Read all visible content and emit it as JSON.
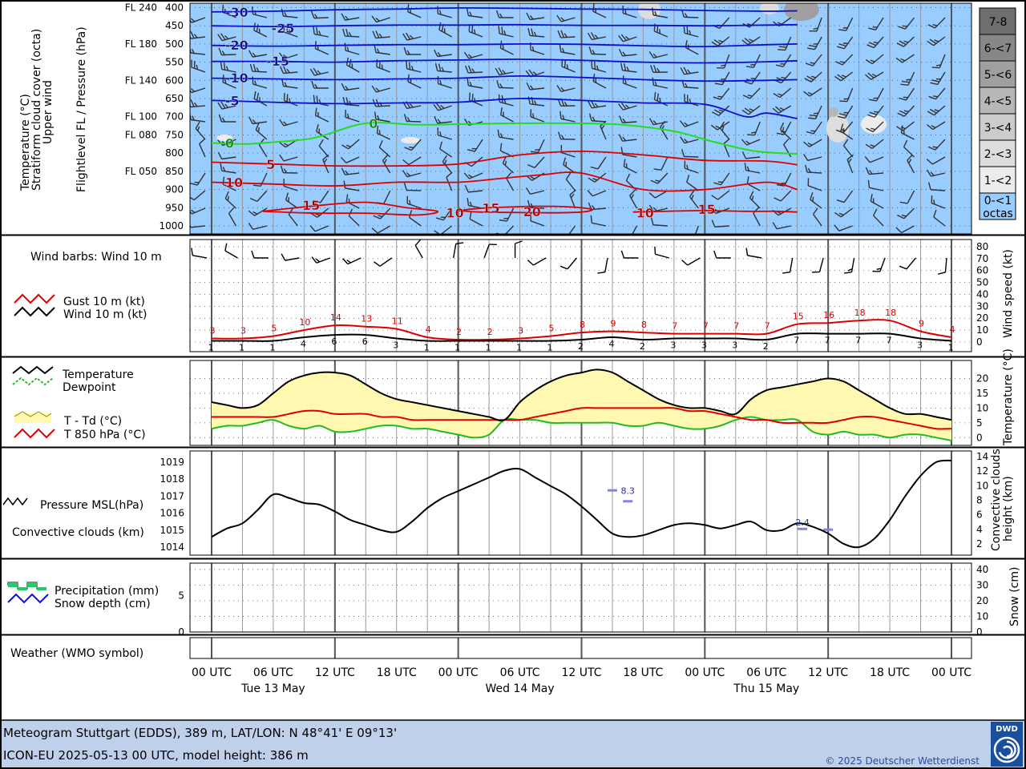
{
  "footer": {
    "line1": "Meteogram Stuttgart (EDDS), 389 m, LAT/LON: N 48°41' E 09°13'",
    "line2": "ICON-EU 2025-05-13 00 UTC, model height: 386 m",
    "copyright": "© 2025 Deutscher Wetterdienst",
    "logo_text": "DWD"
  },
  "time_axis": {
    "ticks": [
      "00 UTC",
      "06 UTC",
      "12 UTC",
      "18 UTC",
      "00 UTC",
      "06 UTC",
      "12 UTC",
      "18 UTC",
      "00 UTC",
      "06 UTC",
      "12 UTC",
      "18 UTC",
      "00 UTC"
    ],
    "days": [
      "Tue 13 May",
      "Wed 14 May",
      "Thu 15 May"
    ]
  },
  "colors": {
    "sky": "#99ccff",
    "neg_isotherm": "#1010cc",
    "zero_isotherm": "#22dd22",
    "pos_isotherm": "#dd0000",
    "td_fill": "#fff8b0",
    "footer_bg": "#bfd0ea"
  },
  "chart_data": [
    {
      "id": "upper",
      "type": "area",
      "title": "Temperature (°C) / Stratiform cloud cover (octa) / Upper wind",
      "ylabel_left_1": "Temperature (°C)",
      "ylabel_left_2": "Stratiform cloud cover (octa)",
      "ylabel_left_3": "Upper wind",
      "ylabel_left_4": "Flightlevel FL / Pressure (hPa)",
      "pressure_levels": [
        {
          "fl": "FL 240",
          "p": "400",
          "v": 400
        },
        {
          "fl": "",
          "p": "450",
          "v": 450
        },
        {
          "fl": "FL 180",
          "p": "500",
          "v": 500
        },
        {
          "fl": "",
          "p": "550",
          "v": 550
        },
        {
          "fl": "FL 140",
          "p": "600",
          "v": 600
        },
        {
          "fl": "",
          "p": "650",
          "v": 650
        },
        {
          "fl": "FL 100",
          "p": "700",
          "v": 700
        },
        {
          "fl": "FL 080",
          "p": "750",
          "v": 750
        },
        {
          "fl": "",
          "p": "800",
          "v": 800
        },
        {
          "fl": "FL 050",
          "p": "850",
          "v": 850
        },
        {
          "fl": "",
          "p": "900",
          "v": 900
        },
        {
          "fl": "",
          "p": "950",
          "v": 950
        },
        {
          "fl": "",
          "p": "1000",
          "v": 1000
        }
      ],
      "ylim": [
        388,
        1022
      ],
      "isotherm_labels": [
        {
          "text": "-30",
          "h": 2,
          "p": 412,
          "kind": "neg"
        },
        {
          "text": "-25",
          "h": 11,
          "p": 456,
          "kind": "neg"
        },
        {
          "text": "-20",
          "h": 2,
          "p": 503,
          "kind": "neg"
        },
        {
          "text": "-15",
          "h": 10,
          "p": 547,
          "kind": "neg"
        },
        {
          "text": "-10",
          "h": 2,
          "p": 593,
          "kind": "neg"
        },
        {
          "text": "-5",
          "h": 2,
          "p": 655,
          "kind": "neg"
        },
        {
          "text": "0",
          "h": 2,
          "p": 772,
          "kind": "zero"
        },
        {
          "text": "0",
          "h": 30,
          "p": 718,
          "kind": "zero"
        },
        {
          "text": "5",
          "h": 10,
          "p": 830,
          "kind": "pos"
        },
        {
          "text": "10",
          "h": 2,
          "p": 880,
          "kind": "pos"
        },
        {
          "text": "15",
          "h": 17,
          "p": 943,
          "kind": "pos"
        },
        {
          "text": "10",
          "h": 45,
          "p": 964,
          "kind": "pos"
        },
        {
          "text": "15",
          "h": 52,
          "p": 950,
          "kind": "pos"
        },
        {
          "text": "20",
          "h": 60,
          "p": 960,
          "kind": "pos"
        },
        {
          "text": "10",
          "h": 82,
          "p": 964,
          "kind": "pos"
        },
        {
          "text": "15",
          "h": 94,
          "p": 954,
          "kind": "pos"
        }
      ],
      "isotherms": [
        {
          "kind": "neg",
          "t": -30,
          "h": [
            0,
            12,
            24,
            36,
            48,
            60,
            72,
            84,
            96,
            108,
            114
          ],
          "p": [
            412,
            410,
            406,
            404,
            401,
            402,
            404,
            405,
            408,
            410,
            409
          ]
        },
        {
          "kind": "neg",
          "t": -25,
          "h": [
            0,
            12,
            24,
            36,
            48,
            60,
            72,
            84,
            96,
            108,
            114
          ],
          "p": [
            450,
            452,
            450,
            448,
            448,
            447,
            449,
            449,
            450,
            448,
            447
          ]
        },
        {
          "kind": "neg",
          "t": -20,
          "h": [
            0,
            12,
            24,
            36,
            48,
            60,
            72,
            84,
            96,
            108,
            114
          ],
          "p": [
            504,
            506,
            504,
            502,
            502,
            500,
            501,
            505,
            507,
            502,
            500
          ]
        },
        {
          "kind": "neg",
          "t": -15,
          "h": [
            0,
            12,
            24,
            36,
            48,
            60,
            72,
            84,
            96,
            108,
            114
          ],
          "p": [
            548,
            548,
            550,
            546,
            544,
            542,
            545,
            550,
            552,
            549,
            546
          ]
        },
        {
          "kind": "neg",
          "t": -10,
          "h": [
            0,
            12,
            24,
            36,
            48,
            60,
            72,
            84,
            96,
            108,
            114
          ],
          "p": [
            594,
            596,
            598,
            596,
            594,
            588,
            592,
            598,
            602,
            600,
            598
          ]
        },
        {
          "kind": "neg",
          "t": -5,
          "h": [
            0,
            12,
            24,
            36,
            48,
            60,
            72,
            84,
            96,
            104,
            108,
            114
          ],
          "p": [
            655,
            660,
            664,
            662,
            660,
            650,
            655,
            662,
            666,
            700,
            690,
            705
          ]
        },
        {
          "kind": "zero",
          "t": 0,
          "h": [
            0,
            6,
            12,
            20,
            30,
            40,
            50,
            60,
            70,
            80,
            90,
            98,
            106,
            114
          ],
          "p": [
            772,
            775,
            770,
            758,
            718,
            722,
            720,
            718,
            718,
            722,
            740,
            770,
            795,
            802
          ]
        },
        {
          "kind": "pos",
          "t": 5,
          "h": [
            0,
            12,
            24,
            36,
            48,
            60,
            72,
            84,
            96,
            108,
            114
          ],
          "p": [
            825,
            830,
            835,
            835,
            830,
            805,
            795,
            805,
            820,
            822,
            832
          ]
        },
        {
          "kind": "pos",
          "t": 10,
          "h": [
            0,
            12,
            24,
            36,
            48,
            56,
            64,
            72,
            84,
            96,
            108,
            114
          ],
          "p": [
            880,
            885,
            890,
            880,
            880,
            870,
            860,
            855,
            900,
            900,
            880,
            900
          ]
        },
        {
          "kind": "pos",
          "t": 15,
          "h": [
            10,
            20,
            30,
            38,
            44,
            40,
            30,
            20,
            10
          ],
          "p": [
            960,
            945,
            935,
            950,
            960,
            970,
            965,
            965,
            960
          ]
        }
      ],
      "cloud_cover_octas": [
        {
          "label": "7-8",
          "color": "#6e6e6e"
        },
        {
          "label": "6-<7",
          "color": "#878787"
        },
        {
          "label": "5-<6",
          "color": "#a0a0a0"
        },
        {
          "label": "4-<5",
          "color": "#b7b7b7"
        },
        {
          "label": "3-<4",
          "color": "#cccccc"
        },
        {
          "label": "2-<3",
          "color": "#dddddd"
        },
        {
          "label": "1-<2",
          "color": "#ececec"
        },
        {
          "label": "0-<1",
          "color": "#99ccff"
        }
      ],
      "cloud_cover_unit": "octas"
    },
    {
      "id": "wind10m",
      "type": "line",
      "title": "Wind barbs: Wind 10 m",
      "series": [
        {
          "name": "Gust 10 m (kt)",
          "color": "#dd0000",
          "values": [
            3,
            3,
            5,
            10,
            14,
            13,
            11,
            4,
            2,
            2,
            3,
            5,
            8,
            9,
            8,
            7,
            7,
            7,
            7,
            15,
            16,
            18,
            18,
            9,
            4
          ]
        },
        {
          "name": "Wind 10 m (kt)",
          "color": "#000000",
          "values": [
            1,
            1,
            1,
            4,
            6,
            6,
            3,
            1,
            1,
            1,
            1,
            1,
            2,
            4,
            2,
            3,
            3,
            3,
            2,
            7,
            7,
            7,
            7,
            3,
            1
          ]
        }
      ],
      "x_hours": [
        0,
        6,
        12,
        18,
        24,
        30,
        36,
        42,
        48,
        54,
        60,
        66,
        72,
        78,
        84,
        90,
        96,
        102,
        108,
        114,
        120,
        126,
        132,
        138,
        144
      ],
      "ylabel": "Wind speed (kt)",
      "yticks": [
        0,
        10,
        20,
        30,
        40,
        50,
        60,
        70,
        80
      ],
      "ylim": [
        0,
        82
      ],
      "barbs": [
        {
          "dir": 280,
          "spd": 4
        },
        {
          "dir": 300,
          "spd": 4
        },
        {
          "dir": 270,
          "spd": 4
        },
        {
          "dir": 260,
          "spd": 6
        },
        {
          "dir": 250,
          "spd": 8
        },
        {
          "dir": 245,
          "spd": 8
        },
        {
          "dir": 235,
          "spd": 6
        },
        {
          "dir": 330,
          "spd": 4
        },
        {
          "dir": 10,
          "spd": 2
        },
        {
          "dir": 20,
          "spd": 2
        },
        {
          "dir": 0,
          "spd": 2
        },
        {
          "dir": 240,
          "spd": 4
        },
        {
          "dir": 220,
          "spd": 4
        },
        {
          "dir": 190,
          "spd": 6
        },
        {
          "dir": 270,
          "spd": 4
        },
        {
          "dir": 285,
          "spd": 4
        },
        {
          "dir": 240,
          "spd": 4
        },
        {
          "dir": 270,
          "spd": 4
        },
        {
          "dir": 280,
          "spd": 4
        },
        {
          "dir": 190,
          "spd": 6
        },
        {
          "dir": 195,
          "spd": 6
        },
        {
          "dir": 190,
          "spd": 8
        },
        {
          "dir": 200,
          "spd": 8
        },
        {
          "dir": 220,
          "spd": 6
        },
        {
          "dir": 185,
          "spd": 4
        }
      ]
    },
    {
      "id": "temperature",
      "type": "line",
      "legend": [
        "Temperature",
        "Dewpoint",
        "T - Td (°C)",
        "T 850 hPa (°C)"
      ],
      "x_hours": [
        0,
        3,
        6,
        9,
        12,
        15,
        18,
        21,
        24,
        27,
        30,
        33,
        36,
        39,
        42,
        45,
        48,
        51,
        54,
        57,
        60,
        63,
        66,
        69,
        72,
        75,
        78,
        81,
        84,
        87,
        90,
        93,
        96,
        99,
        102,
        105,
        108,
        111,
        114,
        117,
        120,
        123,
        126,
        129,
        132,
        135,
        138,
        141,
        144
      ],
      "series": [
        {
          "name": "Temperature",
          "color": "#000000",
          "values": [
            12,
            11,
            10,
            11,
            15,
            19,
            21,
            22,
            22,
            21,
            18,
            15,
            13,
            12,
            11,
            10,
            9,
            8,
            7,
            6,
            12,
            16,
            19,
            21,
            22,
            23,
            22,
            19,
            16,
            13,
            11,
            10,
            10,
            9,
            8,
            13,
            16,
            17,
            18,
            19,
            20,
            19,
            16,
            13,
            10,
            8,
            8,
            7,
            6
          ]
        },
        {
          "name": "Dewpoint",
          "color": "#22bb22",
          "values": [
            3,
            4,
            4,
            5,
            6,
            4,
            3,
            4,
            2,
            2,
            3,
            4,
            4,
            3,
            3,
            2,
            1,
            0,
            1,
            6,
            6,
            6,
            5,
            5,
            5,
            5,
            5,
            4,
            4,
            5,
            4,
            3,
            3,
            4,
            6,
            7,
            6,
            6,
            6,
            2,
            1,
            2,
            1,
            1,
            0,
            1,
            1,
            0,
            -1
          ]
        },
        {
          "name": "T 850 hPa (°C)",
          "color": "#dd0000",
          "values": [
            7,
            7,
            7,
            7,
            7,
            8,
            9,
            9,
            8,
            8,
            8,
            7,
            7,
            6,
            6,
            6,
            6,
            6,
            6,
            6,
            6,
            7,
            8,
            9,
            10,
            10,
            10,
            10,
            10,
            10,
            10,
            9,
            9,
            8,
            7,
            6,
            6,
            5,
            5,
            5,
            5,
            6,
            7,
            7,
            6,
            5,
            4,
            3,
            3
          ]
        }
      ],
      "ylabel": "Temperature (°C)",
      "yticks": [
        0,
        5,
        10,
        15,
        20
      ],
      "ylim": [
        -1,
        25
      ]
    },
    {
      "id": "pressure",
      "type": "line",
      "legend": [
        "Pressure MSL(hPa)",
        "Convective clouds (km)"
      ],
      "x_hours": [
        0,
        3,
        6,
        9,
        12,
        15,
        18,
        21,
        24,
        27,
        30,
        33,
        36,
        39,
        42,
        45,
        48,
        51,
        54,
        57,
        60,
        63,
        66,
        69,
        72,
        75,
        78,
        81,
        84,
        87,
        90,
        93,
        96,
        99,
        102,
        105,
        108,
        111,
        114,
        117,
        120,
        123,
        126,
        129,
        132,
        135,
        138,
        141,
        144
      ],
      "series": [
        {
          "name": "Pressure MSL(hPa)",
          "color": "#000000",
          "values": [
            1014.6,
            1015.1,
            1015.4,
            1016.2,
            1017.1,
            1016.9,
            1016.6,
            1016.5,
            1016.1,
            1015.6,
            1015.3,
            1015.0,
            1014.9,
            1015.5,
            1016.3,
            1016.9,
            1017.3,
            1017.7,
            1018.1,
            1018.5,
            1018.6,
            1018.1,
            1017.6,
            1017.1,
            1016.4,
            1015.6,
            1014.8,
            1014.6,
            1014.7,
            1015.0,
            1015.3,
            1015.4,
            1015.3,
            1015.1,
            1015.3,
            1015.5,
            1015.0,
            1015.0,
            1015.4,
            1015.2,
            1014.8,
            1014.2,
            1014.0,
            1014.5,
            1015.6,
            1017.0,
            1018.2,
            1019.0,
            1019.1
          ]
        }
      ],
      "ylabel_left_ticks": [
        1014,
        1015,
        1016,
        1017,
        1018,
        1019
      ],
      "ylim_left": [
        1013.7,
        1019.3
      ],
      "ylabel_right": "Convective clouds height (km)",
      "yticks_right": [
        2,
        4,
        6,
        8,
        10,
        12,
        14
      ],
      "ylim_right": [
        1,
        14
      ],
      "annotations": [
        {
          "text": "8.3",
          "h": 81,
          "km": 8.9
        },
        {
          "text": "2.4",
          "h": 115,
          "km": 4.5
        }
      ],
      "cloud_bars": [
        {
          "h": 78,
          "km": 9.3
        },
        {
          "h": 81,
          "km": 7.8
        },
        {
          "h": 115,
          "km": 4.0
        },
        {
          "h": 120,
          "km": 3.9
        }
      ]
    },
    {
      "id": "precip",
      "type": "bar",
      "legend": [
        "Precipitation (mm)",
        "Snow depth (cm)"
      ],
      "yticks_left": [
        0,
        5
      ],
      "ylim_left": [
        0,
        9.5
      ],
      "ylabel_right": "Snow (cm)",
      "yticks_right": [
        0,
        10,
        20,
        30,
        40
      ],
      "ylim_right": [
        0,
        44
      ],
      "values": []
    },
    {
      "id": "weather",
      "type": "table",
      "legend": [
        "Weather (WMO symbol)"
      ],
      "values": []
    }
  ]
}
